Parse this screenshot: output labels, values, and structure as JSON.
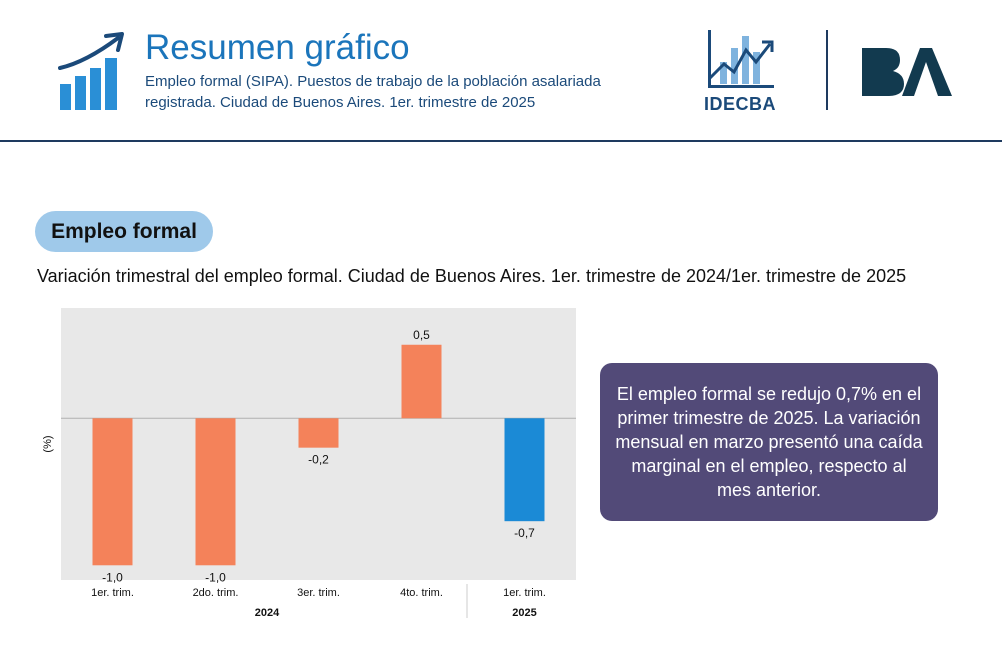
{
  "header": {
    "title": "Resumen gráfico",
    "subtitle": "Empleo formal (SIPA). Puestos de trabajo de la población asalariada registrada. Ciudad de Buenos Aires. 1er. trimestre de 2025",
    "org_logo_text": "IDECBA",
    "brand_logo_text": "BA"
  },
  "section": {
    "label": "Empleo formal"
  },
  "chart_title": "Variación trimestral del empleo formal. Ciudad de Buenos Aires. 1er. trimestre de 2024/1er. trimestre de 2025",
  "summary": "El empleo formal se redujo 0,7% en el primer trimestre de 2025. La variación mensual en marzo presentó una caída marginal en el empleo, respecto al mes anterior.",
  "colors": {
    "primary_blue": "#1b75bb",
    "dark_navy": "#1e3a5f",
    "pill_bg": "#9fc9ea",
    "bar_2024": "#f4825a",
    "bar_2025": "#1b8ad6",
    "plot_bg": "#e8e8e8",
    "summary_bg": "#524a78"
  },
  "chart_data": {
    "type": "bar",
    "ylabel": "(%)",
    "categories": [
      "1er. trim.",
      "2do. trim.",
      "3er. trim.",
      "4to. trim.",
      "1er. trim."
    ],
    "groups": [
      {
        "label": "2024",
        "categories": [
          0,
          1,
          2,
          3
        ]
      },
      {
        "label": "2025",
        "categories": [
          4
        ]
      }
    ],
    "values": [
      -1.0,
      -1.0,
      -0.2,
      0.5,
      -0.7
    ],
    "value_labels": [
      "-1,0",
      "-1,0",
      "-0,2",
      "0,5",
      "-0,7"
    ],
    "bar_colors": [
      "#f4825a",
      "#f4825a",
      "#f4825a",
      "#f4825a",
      "#1b8ad6"
    ],
    "ylim": [
      -1.1,
      0.75
    ],
    "grid": false,
    "legend": "none"
  }
}
